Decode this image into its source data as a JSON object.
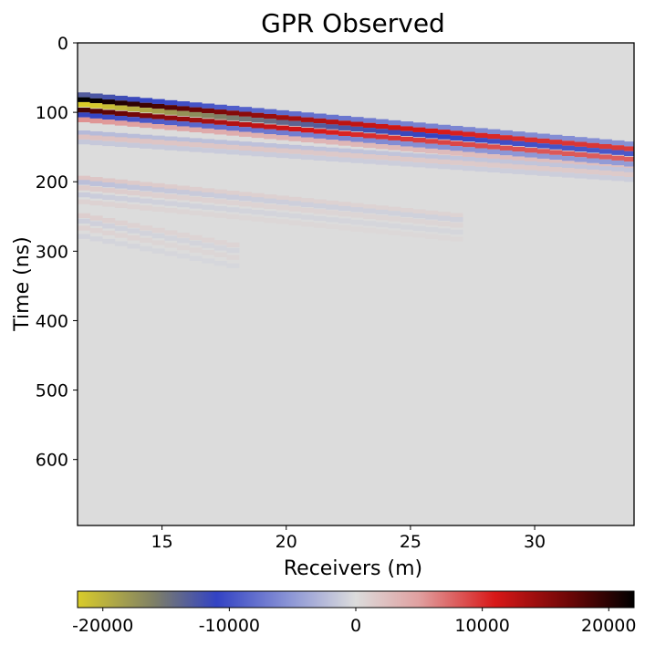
{
  "chart_data": {
    "type": "heatmap",
    "title": "GPR Observed",
    "xlabel": "Receivers (m)",
    "ylabel": "Time (ns)",
    "xlim": [
      11.6,
      34.0
    ],
    "ylim": [
      695,
      0
    ],
    "xticks": [
      15,
      20,
      25,
      30
    ],
    "yticks": [
      0,
      100,
      200,
      300,
      400,
      500,
      600
    ],
    "receiver_spacing": 0.5,
    "colorbar": {
      "range": [
        -22000,
        22000
      ],
      "ticks": [
        -20000,
        -10000,
        0,
        10000,
        20000
      ],
      "tick_labels": [
        "-20000",
        "-10000",
        "0",
        "10000",
        "20000"
      ],
      "colormap": [
        {
          "value": -22000,
          "color": "#d9cc2a"
        },
        {
          "value": -16000,
          "color": "#7f8066"
        },
        {
          "value": -11000,
          "color": "#3343c4"
        },
        {
          "value": -5000,
          "color": "#8f98d6"
        },
        {
          "value": 0,
          "color": "#dcdcdc"
        },
        {
          "value": 5000,
          "color": "#e0a0a0"
        },
        {
          "value": 11000,
          "color": "#d81818"
        },
        {
          "value": 17000,
          "color": "#6a0606"
        },
        {
          "value": 22000,
          "color": "#000000"
        }
      ]
    },
    "background_value": 0,
    "events": [
      {
        "name": "direct-wave",
        "x_start": 11.6,
        "x_end": 34.0,
        "t_start": 88,
        "t_end": 160,
        "wavelet": [
          [
            -14,
            -7000
          ],
          [
            -7,
            12000
          ],
          [
            0,
            -12000
          ],
          [
            8,
            10000
          ],
          [
            15,
            -6000
          ],
          [
            22,
            3000
          ]
        ],
        "amp_start": 1.9,
        "amp_end": 0.45,
        "attenuation_half_x": 9
      },
      {
        "name": "reflection-1",
        "x_start": 11.6,
        "x_end": 34.0,
        "t_start": 135,
        "t_end": 190,
        "wavelet": [
          [
            -6,
            -2500
          ],
          [
            0,
            2200
          ],
          [
            7,
            -1500
          ]
        ],
        "amp_start": 1.0,
        "amp_end": 0.4,
        "attenuation_half_x": 12
      },
      {
        "name": "reflection-2",
        "x_start": 11.6,
        "x_end": 27.0,
        "t_start": 200,
        "t_end": 255,
        "wavelet": [
          [
            -6,
            2000
          ],
          [
            0,
            -2200
          ],
          [
            8,
            1500
          ],
          [
            18,
            -1200
          ],
          [
            28,
            900
          ]
        ],
        "amp_start": 1.0,
        "amp_end": 0.25,
        "attenuation_half_x": 5
      },
      {
        "name": "reflection-3",
        "x_start": 11.6,
        "x_end": 18.0,
        "t_start": 255,
        "t_end": 300,
        "wavelet": [
          [
            -8,
            1200
          ],
          [
            0,
            -1000
          ],
          [
            10,
            900
          ],
          [
            22,
            -700
          ]
        ],
        "amp_start": 1.0,
        "amp_end": 0.3,
        "attenuation_half_x": 3
      }
    ]
  }
}
